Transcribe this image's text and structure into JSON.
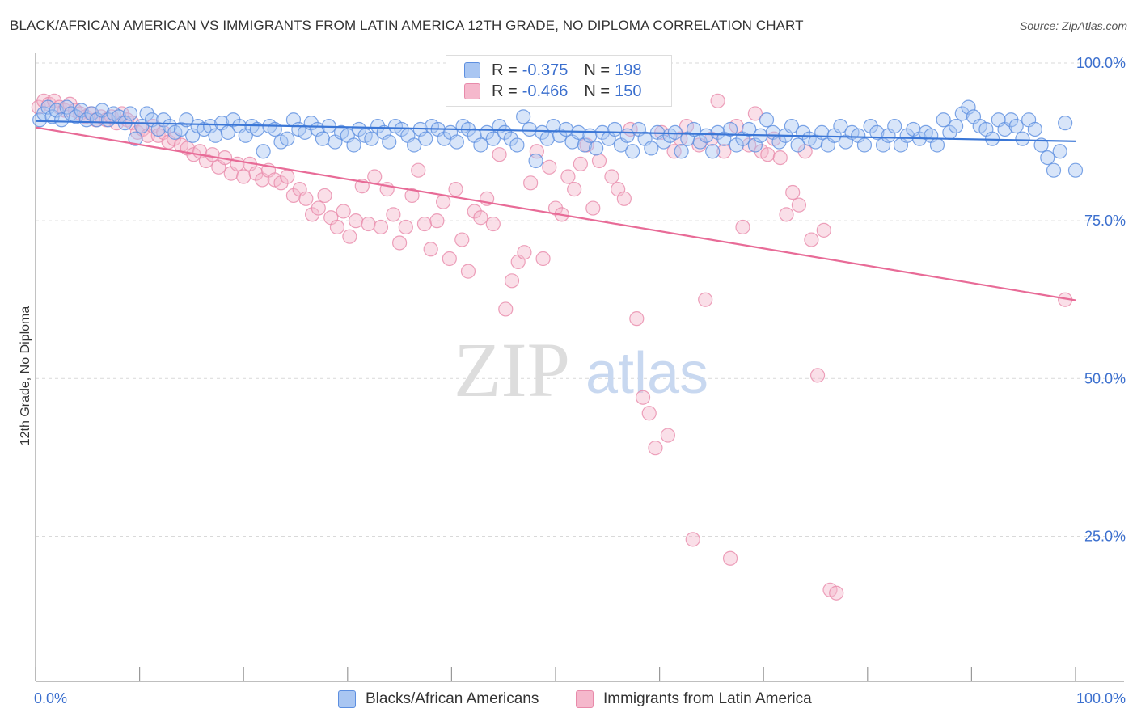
{
  "title": "BLACK/AFRICAN AMERICAN VS IMMIGRANTS FROM LATIN AMERICA 12TH GRADE, NO DIPLOMA CORRELATION CHART",
  "source": "Source: ZipAtlas.com",
  "watermark": {
    "zip": "ZIP",
    "atlas": "atlas"
  },
  "legend_top": [
    {
      "r_label": "R =",
      "r_value": "-0.375",
      "n_label": "N =",
      "n_value": "198"
    },
    {
      "r_label": "R =",
      "r_value": "-0.466",
      "n_label": "N =",
      "n_value": "150"
    }
  ],
  "colors": {
    "blue_fill": "#a9c6f2",
    "blue_stroke": "#5d8fe0",
    "blue_line": "#3a76d6",
    "pink_fill": "#f5b8cc",
    "pink_stroke": "#e88aaa",
    "pink_line": "#e86b97",
    "tick_label": "#3b6fce",
    "grid": "#d9d9d9"
  },
  "chart_data": {
    "type": "scatter",
    "title": "BLACK/AFRICAN AMERICAN VS IMMIGRANTS FROM LATIN AMERICA 12TH GRADE, NO DIPLOMA CORRELATION CHART",
    "xlabel": "",
    "ylabel": "12th Grade, No Diploma",
    "xlim": [
      0,
      100
    ],
    "ylim": [
      2,
      100
    ],
    "x_tick_labels": [
      "0.0%",
      "100.0%"
    ],
    "y_ticks": [
      25,
      50,
      75,
      100
    ],
    "y_tick_labels": [
      "25.0%",
      "50.0%",
      "75.0%",
      "100.0%"
    ],
    "grid": true,
    "series": [
      {
        "name": "Blacks/African Americans",
        "color": "#a9c6f2",
        "trend": {
          "x": [
            0,
            100
          ],
          "y": [
            90.8,
            87.6
          ]
        },
        "points": [
          [
            0.4,
            91
          ],
          [
            0.8,
            92
          ],
          [
            1.2,
            93
          ],
          [
            1.6,
            91.5
          ],
          [
            2,
            92.5
          ],
          [
            2.5,
            91
          ],
          [
            3,
            93
          ],
          [
            3.4,
            92
          ],
          [
            3.9,
            91.5
          ],
          [
            4.4,
            92.5
          ],
          [
            4.9,
            91
          ],
          [
            5.4,
            92
          ],
          [
            5.9,
            91
          ],
          [
            6.4,
            92.5
          ],
          [
            7,
            91
          ],
          [
            7.5,
            92
          ],
          [
            8,
            91.5
          ],
          [
            8.6,
            90.5
          ],
          [
            9.1,
            92
          ],
          [
            9.6,
            88
          ],
          [
            10.2,
            90
          ],
          [
            10.7,
            92
          ],
          [
            11.2,
            91
          ],
          [
            11.8,
            89.5
          ],
          [
            12.3,
            91
          ],
          [
            12.9,
            90
          ],
          [
            13.4,
            89
          ],
          [
            14,
            89.5
          ],
          [
            14.5,
            91
          ],
          [
            15.1,
            88.5
          ],
          [
            15.6,
            90
          ],
          [
            16.2,
            89.5
          ],
          [
            16.8,
            90
          ],
          [
            17.3,
            88.5
          ],
          [
            17.9,
            90.5
          ],
          [
            18.5,
            89
          ],
          [
            19,
            91
          ],
          [
            19.6,
            90
          ],
          [
            20.2,
            88.5
          ],
          [
            20.8,
            90
          ],
          [
            21.3,
            89.5
          ],
          [
            21.9,
            86
          ],
          [
            22.5,
            90
          ],
          [
            23,
            89.5
          ],
          [
            23.6,
            87.5
          ],
          [
            24.2,
            88
          ],
          [
            24.8,
            91
          ],
          [
            25.3,
            89.5
          ],
          [
            25.9,
            89
          ],
          [
            26.5,
            90.5
          ],
          [
            27.1,
            89.5
          ],
          [
            27.6,
            88
          ],
          [
            28.2,
            90
          ],
          [
            28.8,
            87.5
          ],
          [
            29.4,
            89
          ],
          [
            30,
            88.5
          ],
          [
            30.6,
            87
          ],
          [
            31.1,
            89.5
          ],
          [
            31.7,
            88.5
          ],
          [
            32.3,
            88
          ],
          [
            32.9,
            90
          ],
          [
            33.5,
            89
          ],
          [
            34,
            87.5
          ],
          [
            34.6,
            90
          ],
          [
            35.2,
            89.5
          ],
          [
            35.8,
            88.5
          ],
          [
            36.4,
            87
          ],
          [
            37,
            89.5
          ],
          [
            37.5,
            88
          ],
          [
            38.1,
            90
          ],
          [
            38.7,
            89.5
          ],
          [
            39.3,
            88
          ],
          [
            39.9,
            89
          ],
          [
            40.5,
            87.5
          ],
          [
            41.1,
            90
          ],
          [
            41.6,
            89.5
          ],
          [
            42.2,
            88.5
          ],
          [
            42.8,
            87
          ],
          [
            43.4,
            89
          ],
          [
            44,
            88
          ],
          [
            44.6,
            90
          ],
          [
            45.1,
            89
          ],
          [
            45.7,
            88
          ],
          [
            46.3,
            87
          ],
          [
            46.9,
            91.5
          ],
          [
            47.5,
            89.5
          ],
          [
            48.1,
            84.5
          ],
          [
            48.7,
            89
          ],
          [
            49.2,
            88
          ],
          [
            49.8,
            90
          ],
          [
            50.4,
            88.5
          ],
          [
            51,
            89.5
          ],
          [
            51.6,
            87.5
          ],
          [
            52.2,
            89
          ],
          [
            52.8,
            87
          ],
          [
            53.3,
            88.5
          ],
          [
            53.9,
            86.5
          ],
          [
            54.5,
            89
          ],
          [
            55.1,
            88
          ],
          [
            55.7,
            89.5
          ],
          [
            56.3,
            87
          ],
          [
            56.9,
            88.5
          ],
          [
            57.4,
            86
          ],
          [
            58,
            89.5
          ],
          [
            58.6,
            88
          ],
          [
            59.2,
            86.5
          ],
          [
            59.8,
            89
          ],
          [
            60.4,
            87.5
          ],
          [
            61,
            88.5
          ],
          [
            61.5,
            89
          ],
          [
            62.1,
            86
          ],
          [
            62.7,
            88
          ],
          [
            63.3,
            89.5
          ],
          [
            63.9,
            87.5
          ],
          [
            64.5,
            88.5
          ],
          [
            65.1,
            86
          ],
          [
            65.6,
            89
          ],
          [
            66.2,
            88
          ],
          [
            66.8,
            89.5
          ],
          [
            67.4,
            87
          ],
          [
            68,
            88
          ],
          [
            68.6,
            89.5
          ],
          [
            69.2,
            87
          ],
          [
            69.7,
            88.5
          ],
          [
            70.3,
            91
          ],
          [
            70.9,
            89
          ],
          [
            71.5,
            87.5
          ],
          [
            72.1,
            88.5
          ],
          [
            72.7,
            90
          ],
          [
            73.3,
            87
          ],
          [
            73.8,
            89
          ],
          [
            74.4,
            88
          ],
          [
            75,
            87.5
          ],
          [
            75.6,
            89
          ],
          [
            76.2,
            87
          ],
          [
            76.8,
            88.5
          ],
          [
            77.4,
            90
          ],
          [
            77.9,
            87.5
          ],
          [
            78.5,
            89
          ],
          [
            79.1,
            88.5
          ],
          [
            79.7,
            87
          ],
          [
            80.3,
            90
          ],
          [
            80.9,
            89
          ],
          [
            81.5,
            87
          ],
          [
            82,
            88.5
          ],
          [
            82.6,
            90
          ],
          [
            83.2,
            87
          ],
          [
            83.8,
            88.5
          ],
          [
            84.4,
            89.5
          ],
          [
            85,
            88
          ],
          [
            85.6,
            89
          ],
          [
            86.1,
            88.5
          ],
          [
            86.7,
            87
          ],
          [
            87.3,
            91
          ],
          [
            87.9,
            89
          ],
          [
            88.5,
            90
          ],
          [
            89.1,
            92
          ],
          [
            89.7,
            93
          ],
          [
            90.2,
            91.5
          ],
          [
            90.8,
            90
          ],
          [
            91.4,
            89.5
          ],
          [
            92,
            88
          ],
          [
            92.6,
            91
          ],
          [
            93.2,
            89.5
          ],
          [
            93.8,
            91
          ],
          [
            94.3,
            90
          ],
          [
            94.9,
            88
          ],
          [
            95.5,
            91
          ],
          [
            96.1,
            89.5
          ],
          [
            96.7,
            87
          ],
          [
            97.3,
            85
          ],
          [
            97.9,
            83
          ],
          [
            98.5,
            86
          ],
          [
            99,
            90.5
          ],
          [
            100,
            83
          ]
        ]
      },
      {
        "name": "Immigrants from Latin America",
        "color": "#f5b8cc",
        "trend": {
          "x": [
            0,
            100
          ],
          "y": [
            89.8,
            62.4
          ]
        },
        "points": [
          [
            0.3,
            93
          ],
          [
            0.8,
            94
          ],
          [
            1.3,
            93.5
          ],
          [
            1.8,
            94
          ],
          [
            2.3,
            93
          ],
          [
            2.8,
            92.5
          ],
          [
            3.3,
            93.5
          ],
          [
            3.8,
            92.5
          ],
          [
            4.3,
            92
          ],
          [
            4.8,
            91.5
          ],
          [
            5.3,
            92
          ],
          [
            5.8,
            91
          ],
          [
            6.3,
            91.5
          ],
          [
            6.8,
            91
          ],
          [
            7.3,
            91.5
          ],
          [
            7.8,
            90.5
          ],
          [
            8.3,
            92
          ],
          [
            8.8,
            91
          ],
          [
            9.3,
            90.5
          ],
          [
            9.8,
            89
          ],
          [
            10.3,
            89.5
          ],
          [
            10.8,
            88.5
          ],
          [
            11.3,
            90
          ],
          [
            11.8,
            88.5
          ],
          [
            12.3,
            89
          ],
          [
            12.8,
            87.5
          ],
          [
            13.3,
            88
          ],
          [
            14,
            87
          ],
          [
            14.6,
            86.5
          ],
          [
            15.2,
            85.5
          ],
          [
            15.8,
            86
          ],
          [
            16.4,
            84.5
          ],
          [
            17,
            85.5
          ],
          [
            17.6,
            83.5
          ],
          [
            18.2,
            85
          ],
          [
            18.8,
            82.5
          ],
          [
            19.4,
            84
          ],
          [
            20,
            82
          ],
          [
            20.6,
            84
          ],
          [
            21.2,
            82.5
          ],
          [
            21.8,
            81.5
          ],
          [
            22.4,
            83
          ],
          [
            23,
            81.5
          ],
          [
            23.6,
            81
          ],
          [
            24.2,
            82
          ],
          [
            24.8,
            79
          ],
          [
            25.4,
            80
          ],
          [
            26,
            78.5
          ],
          [
            26.6,
            76
          ],
          [
            27.2,
            77
          ],
          [
            27.8,
            79
          ],
          [
            28.4,
            75.5
          ],
          [
            29,
            74
          ],
          [
            29.6,
            76.5
          ],
          [
            30.2,
            72.5
          ],
          [
            30.8,
            75
          ],
          [
            31.4,
            80.5
          ],
          [
            32,
            74.5
          ],
          [
            32.6,
            82
          ],
          [
            33.2,
            74
          ],
          [
            33.8,
            80
          ],
          [
            34.4,
            76
          ],
          [
            35,
            71.5
          ],
          [
            35.6,
            74
          ],
          [
            36.2,
            79
          ],
          [
            36.8,
            83
          ],
          [
            37.4,
            74.5
          ],
          [
            38,
            70.5
          ],
          [
            38.6,
            75
          ],
          [
            39.2,
            78
          ],
          [
            39.8,
            69
          ],
          [
            40.4,
            80
          ],
          [
            41,
            72
          ],
          [
            41.6,
            67
          ],
          [
            42.2,
            76.5
          ],
          [
            42.8,
            75.5
          ],
          [
            43.4,
            78.5
          ],
          [
            44,
            74.5
          ],
          [
            44.6,
            85.5
          ],
          [
            45.2,
            61
          ],
          [
            45.8,
            65.5
          ],
          [
            46.4,
            68.5
          ],
          [
            47,
            70
          ],
          [
            47.6,
            81
          ],
          [
            48.2,
            86
          ],
          [
            48.8,
            69
          ],
          [
            49.4,
            83.5
          ],
          [
            50,
            77
          ],
          [
            50.6,
            76
          ],
          [
            51.2,
            82
          ],
          [
            51.8,
            80
          ],
          [
            52.4,
            84
          ],
          [
            53,
            87
          ],
          [
            53.6,
            77
          ],
          [
            54.2,
            84.5
          ],
          [
            54.8,
            95
          ],
          [
            55.4,
            82
          ],
          [
            56,
            80
          ],
          [
            56.6,
            78.5
          ],
          [
            57.2,
            89.5
          ],
          [
            57.8,
            59.5
          ],
          [
            58.4,
            47
          ],
          [
            59,
            44.5
          ],
          [
            59.6,
            39
          ],
          [
            60.2,
            89
          ],
          [
            60.8,
            41
          ],
          [
            61.4,
            86
          ],
          [
            62,
            88
          ],
          [
            62.6,
            90
          ],
          [
            63.2,
            24.5
          ],
          [
            63.8,
            87
          ],
          [
            64.4,
            62.5
          ],
          [
            65,
            88
          ],
          [
            65.6,
            94
          ],
          [
            66.2,
            86
          ],
          [
            66.8,
            21.5
          ],
          [
            67.4,
            90
          ],
          [
            68,
            74
          ],
          [
            68.6,
            87
          ],
          [
            69.2,
            92
          ],
          [
            69.8,
            86
          ],
          [
            70.4,
            85.5
          ],
          [
            71,
            88
          ],
          [
            71.6,
            85
          ],
          [
            72.2,
            76
          ],
          [
            72.8,
            79.5
          ],
          [
            73.4,
            77.5
          ],
          [
            74,
            86
          ],
          [
            74.6,
            72
          ],
          [
            75.2,
            50.5
          ],
          [
            75.8,
            73.5
          ],
          [
            76.4,
            16.5
          ],
          [
            77,
            16
          ],
          [
            99,
            62.5
          ]
        ]
      }
    ]
  },
  "legend_bottom": [
    {
      "label": "Blacks/African Americans"
    },
    {
      "label": "Immigrants from Latin America"
    }
  ]
}
